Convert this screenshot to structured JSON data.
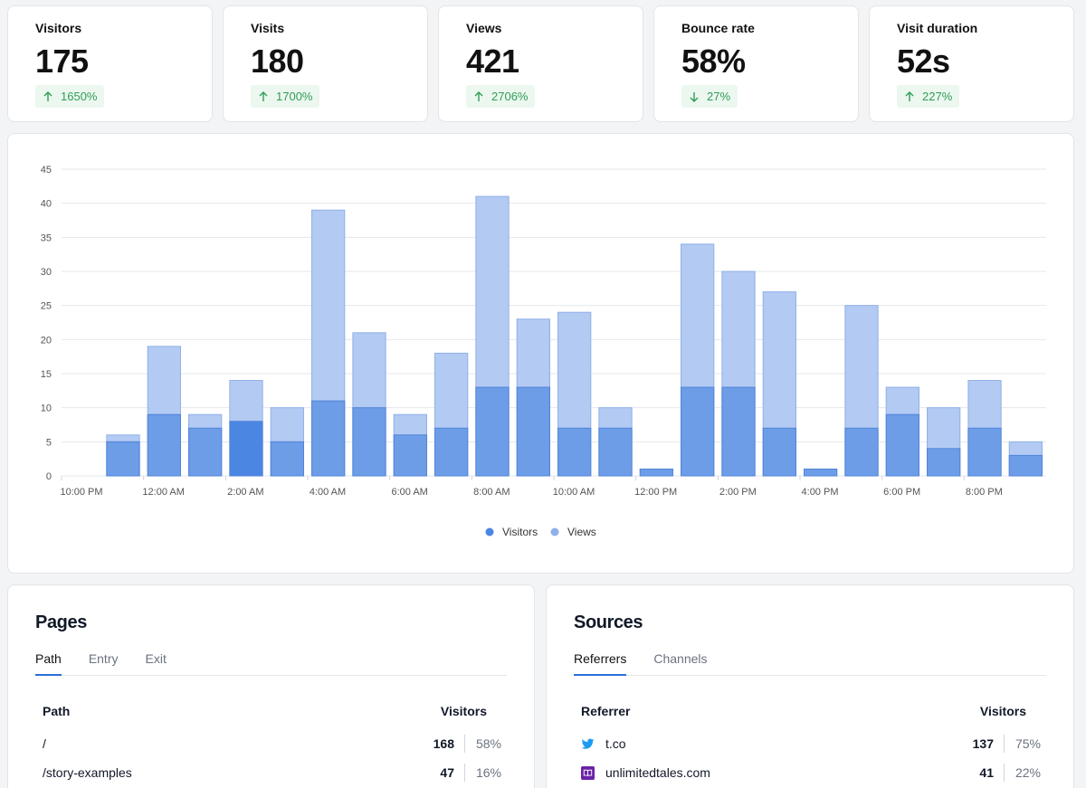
{
  "metrics": [
    {
      "label": "Visitors",
      "value": "175",
      "change": "1650%",
      "direction": "up"
    },
    {
      "label": "Visits",
      "value": "180",
      "change": "1700%",
      "direction": "up"
    },
    {
      "label": "Views",
      "value": "421",
      "change": "2706%",
      "direction": "up"
    },
    {
      "label": "Bounce rate",
      "value": "58%",
      "change": "27%",
      "direction": "down"
    },
    {
      "label": "Visit duration",
      "value": "52s",
      "change": "227%",
      "direction": "up"
    }
  ],
  "chart_data": {
    "type": "bar",
    "stacked_overlay": true,
    "x_tick_labels": [
      "10:00 PM",
      "12:00 AM",
      "2:00 AM",
      "4:00 AM",
      "6:00 AM",
      "8:00 AM",
      "10:00 AM",
      "12:00 PM",
      "2:00 PM",
      "4:00 PM",
      "6:00 PM",
      "8:00 PM"
    ],
    "bucket_count": 24,
    "series": [
      {
        "name": "Visitors",
        "color": "#6e9de8",
        "values": [
          0,
          5,
          9,
          7,
          8,
          5,
          11,
          10,
          6,
          7,
          13,
          13,
          7,
          7,
          1,
          13,
          13,
          7,
          1,
          7,
          9,
          4,
          7,
          3
        ]
      },
      {
        "name": "Views",
        "color": "#b3caf3",
        "values": [
          0,
          6,
          19,
          9,
          14,
          10,
          39,
          21,
          9,
          18,
          41,
          23,
          24,
          10,
          0,
          34,
          30,
          27,
          0,
          25,
          13,
          10,
          14,
          5
        ]
      }
    ],
    "highlight_index": 4,
    "y_ticks": [
      0,
      5,
      10,
      15,
      20,
      25,
      30,
      35,
      40,
      45
    ],
    "ylim": [
      0,
      45
    ],
    "legend": [
      "Visitors",
      "Views"
    ],
    "legend_position": "bottom-center"
  },
  "pages": {
    "title": "Pages",
    "tabs": [
      "Path",
      "Entry",
      "Exit"
    ],
    "col_name": "Path",
    "col_value": "Visitors",
    "rows": [
      {
        "name": "/",
        "value": "168",
        "pct": "58%"
      },
      {
        "name": "/story-examples",
        "value": "47",
        "pct": "16%"
      }
    ]
  },
  "sources": {
    "title": "Sources",
    "tabs": [
      "Referrers",
      "Channels"
    ],
    "col_name": "Referrer",
    "col_value": "Visitors",
    "rows": [
      {
        "name": "t.co",
        "icon": "twitter-icon",
        "value": "137",
        "pct": "75%"
      },
      {
        "name": "unlimitedtales.com",
        "icon": "book-icon",
        "value": "41",
        "pct": "22%"
      }
    ]
  }
}
